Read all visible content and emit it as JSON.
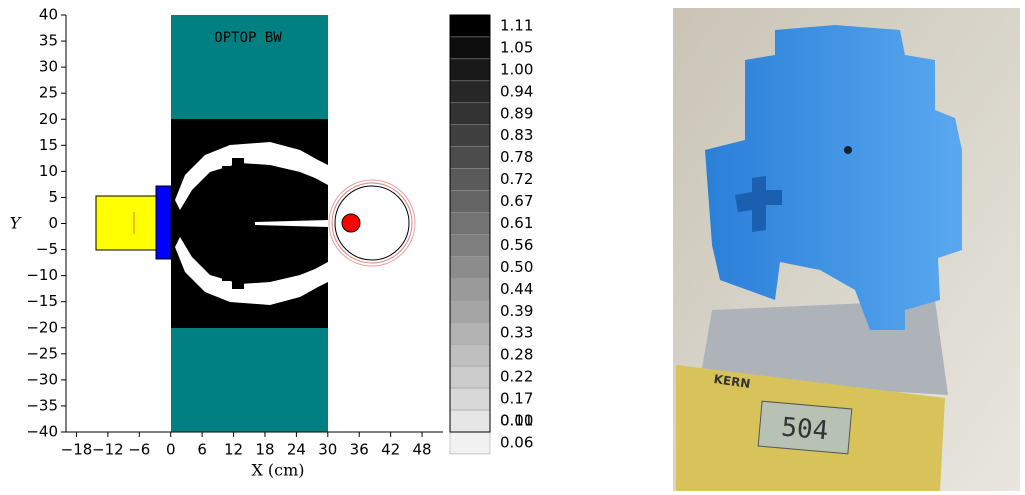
{
  "chart_data": {
    "type": "geometry",
    "title": "OPTOP BW",
    "xlabel": "X (cm)",
    "ylabel": "Y",
    "xlim": [
      -20,
      52
    ],
    "ylim": [
      -40,
      40
    ],
    "xticks": [
      {
        "value": -18,
        "label": "−18"
      },
      {
        "value": -12,
        "label": "−12"
      },
      {
        "value": -6,
        "label": "−6"
      },
      0,
      6,
      12,
      18,
      24,
      30,
      36,
      42,
      48
    ],
    "yticks": [
      40,
      35,
      30,
      25,
      20,
      15,
      10,
      5,
      0,
      {
        "value": -5,
        "label": "−5"
      },
      {
        "value": -10,
        "label": "−10"
      },
      {
        "value": -15,
        "label": "−15"
      },
      {
        "value": -20,
        "label": "−20"
      },
      {
        "value": -25,
        "label": "−25"
      },
      {
        "value": -30,
        "label": "−30"
      },
      {
        "value": -35,
        "label": "−35"
      },
      {
        "value": -40,
        "label": "−40"
      }
    ],
    "colorbar_ticks": [
      {
        "value": 1.11,
        "label": "1.11"
      },
      {
        "value": 1.05,
        "label": "1.05"
      },
      {
        "value": 1.0,
        "label": "1.00"
      },
      {
        "value": 0.94,
        "label": "0.94"
      },
      {
        "value": 0.89,
        "label": "0.89"
      },
      {
        "value": 0.83,
        "label": "0.83"
      },
      {
        "value": 0.78,
        "label": "0.78"
      },
      {
        "value": 0.72,
        "label": "0.72"
      },
      {
        "value": 0.67,
        "label": "0.67"
      },
      {
        "value": 0.61,
        "label": "0.61"
      },
      {
        "value": 0.56,
        "label": "0.56"
      },
      {
        "value": 0.5,
        "label": "0.50"
      },
      {
        "value": 0.44,
        "label": "0.44"
      },
      {
        "value": 0.39,
        "label": "0.39"
      },
      {
        "value": 0.33,
        "label": "0.33"
      },
      {
        "value": 0.28,
        "label": "0.28"
      },
      {
        "value": 0.22,
        "label": "0.22"
      },
      {
        "value": 0.17,
        "label": "0.17"
      },
      {
        "value": 0.11,
        "label": "0.11"
      },
      {
        "value": 0.06,
        "label": "0.06"
      },
      {
        "value": 0.0,
        "label": "0.00"
      }
    ]
  },
  "photo": {
    "scale_brand": "KERN",
    "display": "504"
  }
}
